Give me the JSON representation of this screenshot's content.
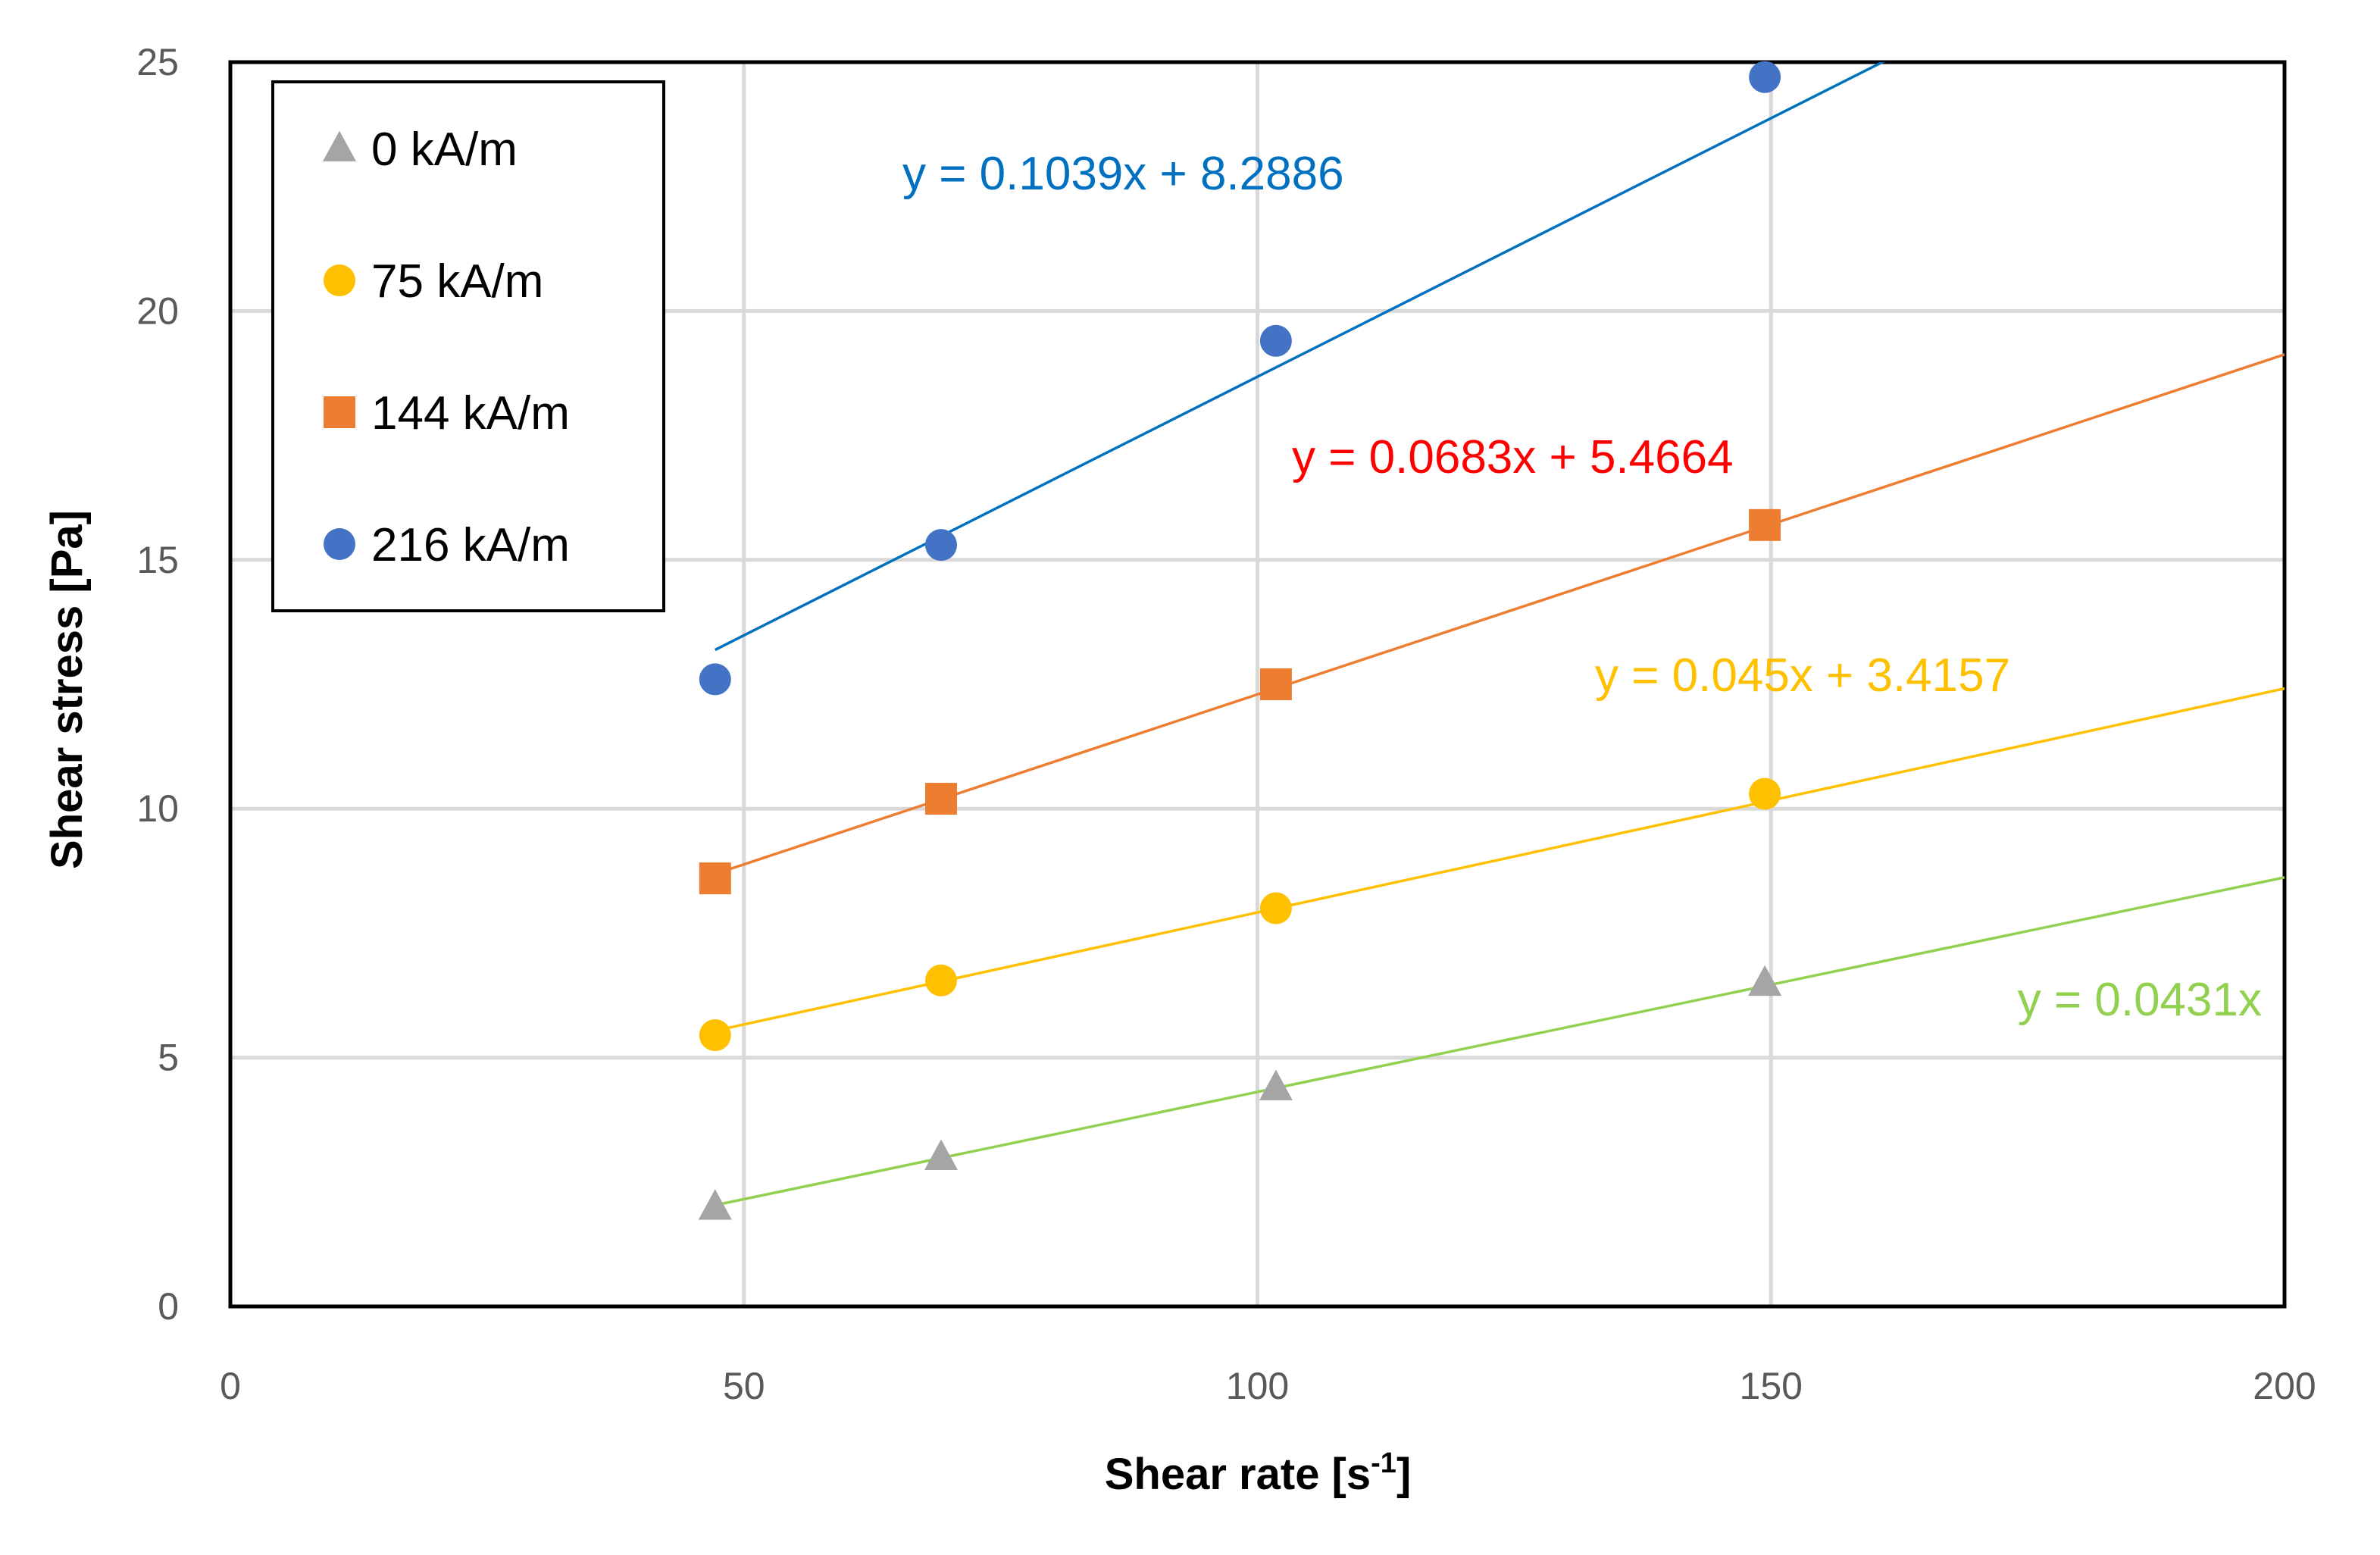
{
  "chart_data": {
    "type": "scatter",
    "xlabel": "Shear rate [s",
    "xlabel_sup": "-1",
    "xlabel_end": "]",
    "ylabel": "Shear stress [Pa]",
    "xlim": [
      0,
      200
    ],
    "ylim": [
      0,
      25
    ],
    "x_ticks": [
      0,
      50,
      100,
      150,
      200
    ],
    "y_ticks": [
      0,
      5,
      10,
      15,
      20,
      25
    ],
    "grid": true,
    "legend_position": "top-left",
    "series": [
      {
        "name": "0 kA/m",
        "marker": "triangle",
        "color": "#A5A5A5",
        "x": [
          47.2,
          69.2,
          101.8,
          149.4
        ],
        "y": [
          2.0,
          3.0,
          4.4,
          6.5
        ],
        "trendline": {
          "slope": 0.0431,
          "intercept": 0,
          "x_range": [
            47.2,
            200
          ],
          "color": "#92D050",
          "label": "y = 0.0431x",
          "label_color": "#92D050"
        }
      },
      {
        "name": "75 kA/m",
        "marker": "circle",
        "color": "#FFC000",
        "x": [
          47.2,
          69.2,
          101.8,
          149.4
        ],
        "y": [
          5.45,
          6.55,
          8.0,
          10.3
        ],
        "trendline": {
          "slope": 0.045,
          "intercept": 3.4157,
          "x_range": [
            47.2,
            200
          ],
          "color": "#FFC000",
          "label": "y = 0.045x + 3.4157",
          "label_color": "#FFC000"
        }
      },
      {
        "name": "144 kA/m",
        "marker": "square",
        "color": "#ED7D31",
        "x": [
          47.2,
          69.2,
          101.8,
          149.4
        ],
        "y": [
          8.6,
          10.2,
          12.5,
          15.7
        ],
        "trendline": {
          "slope": 0.0683,
          "intercept": 5.4664,
          "x_range": [
            47.2,
            200
          ],
          "color": "#ED7D31",
          "label": "y = 0.0683x + 5.4664",
          "label_color": "#FF0000"
        }
      },
      {
        "name": "216 kA/m",
        "marker": "circle",
        "color": "#4472C4",
        "x": [
          47.2,
          69.2,
          101.8,
          149.4
        ],
        "y": [
          12.6,
          15.3,
          19.4,
          24.7
        ],
        "trendline": {
          "slope": 0.1039,
          "intercept": 8.2886,
          "x_range": [
            47.2,
            200
          ],
          "color": "#0070C0",
          "label": "y = 0.1039x + 8.2886",
          "label_color": "#0070C0"
        }
      }
    ]
  }
}
